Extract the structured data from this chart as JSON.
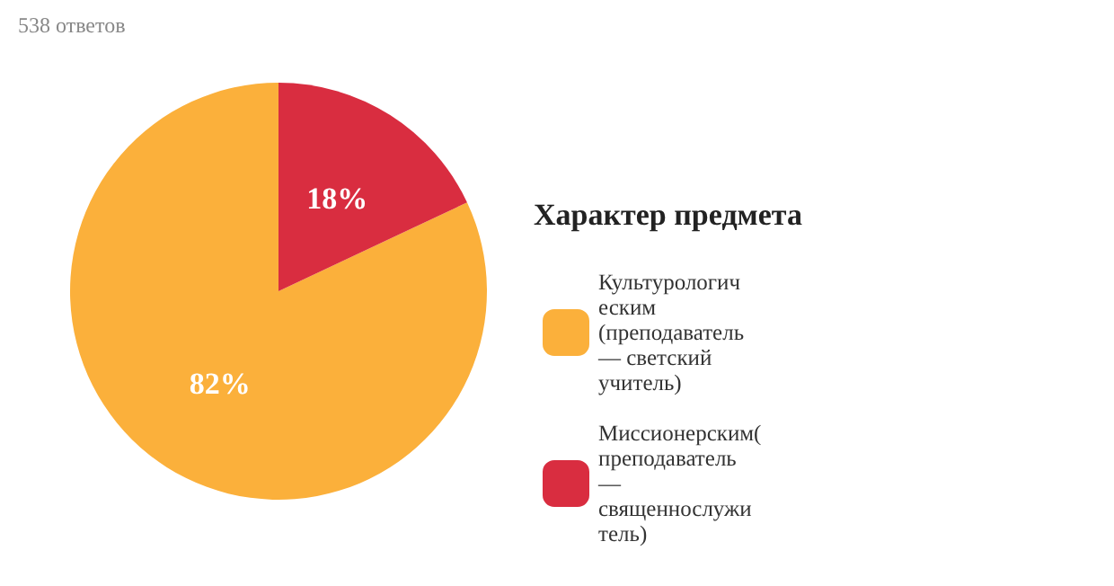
{
  "chart_data": {
    "type": "pie",
    "annotations": [
      "538 ответов"
    ],
    "legend_title": "Характер предмета",
    "categories": [
      "Культурологическим (преподаватель — светский учитель)",
      "Миссионерским(преподаватель — священнослужитель)"
    ],
    "values": [
      82,
      18
    ],
    "colors": [
      "#fbb03b",
      "#d92d40"
    ],
    "value_labels": [
      "82%",
      "18%"
    ],
    "legend": "right"
  }
}
